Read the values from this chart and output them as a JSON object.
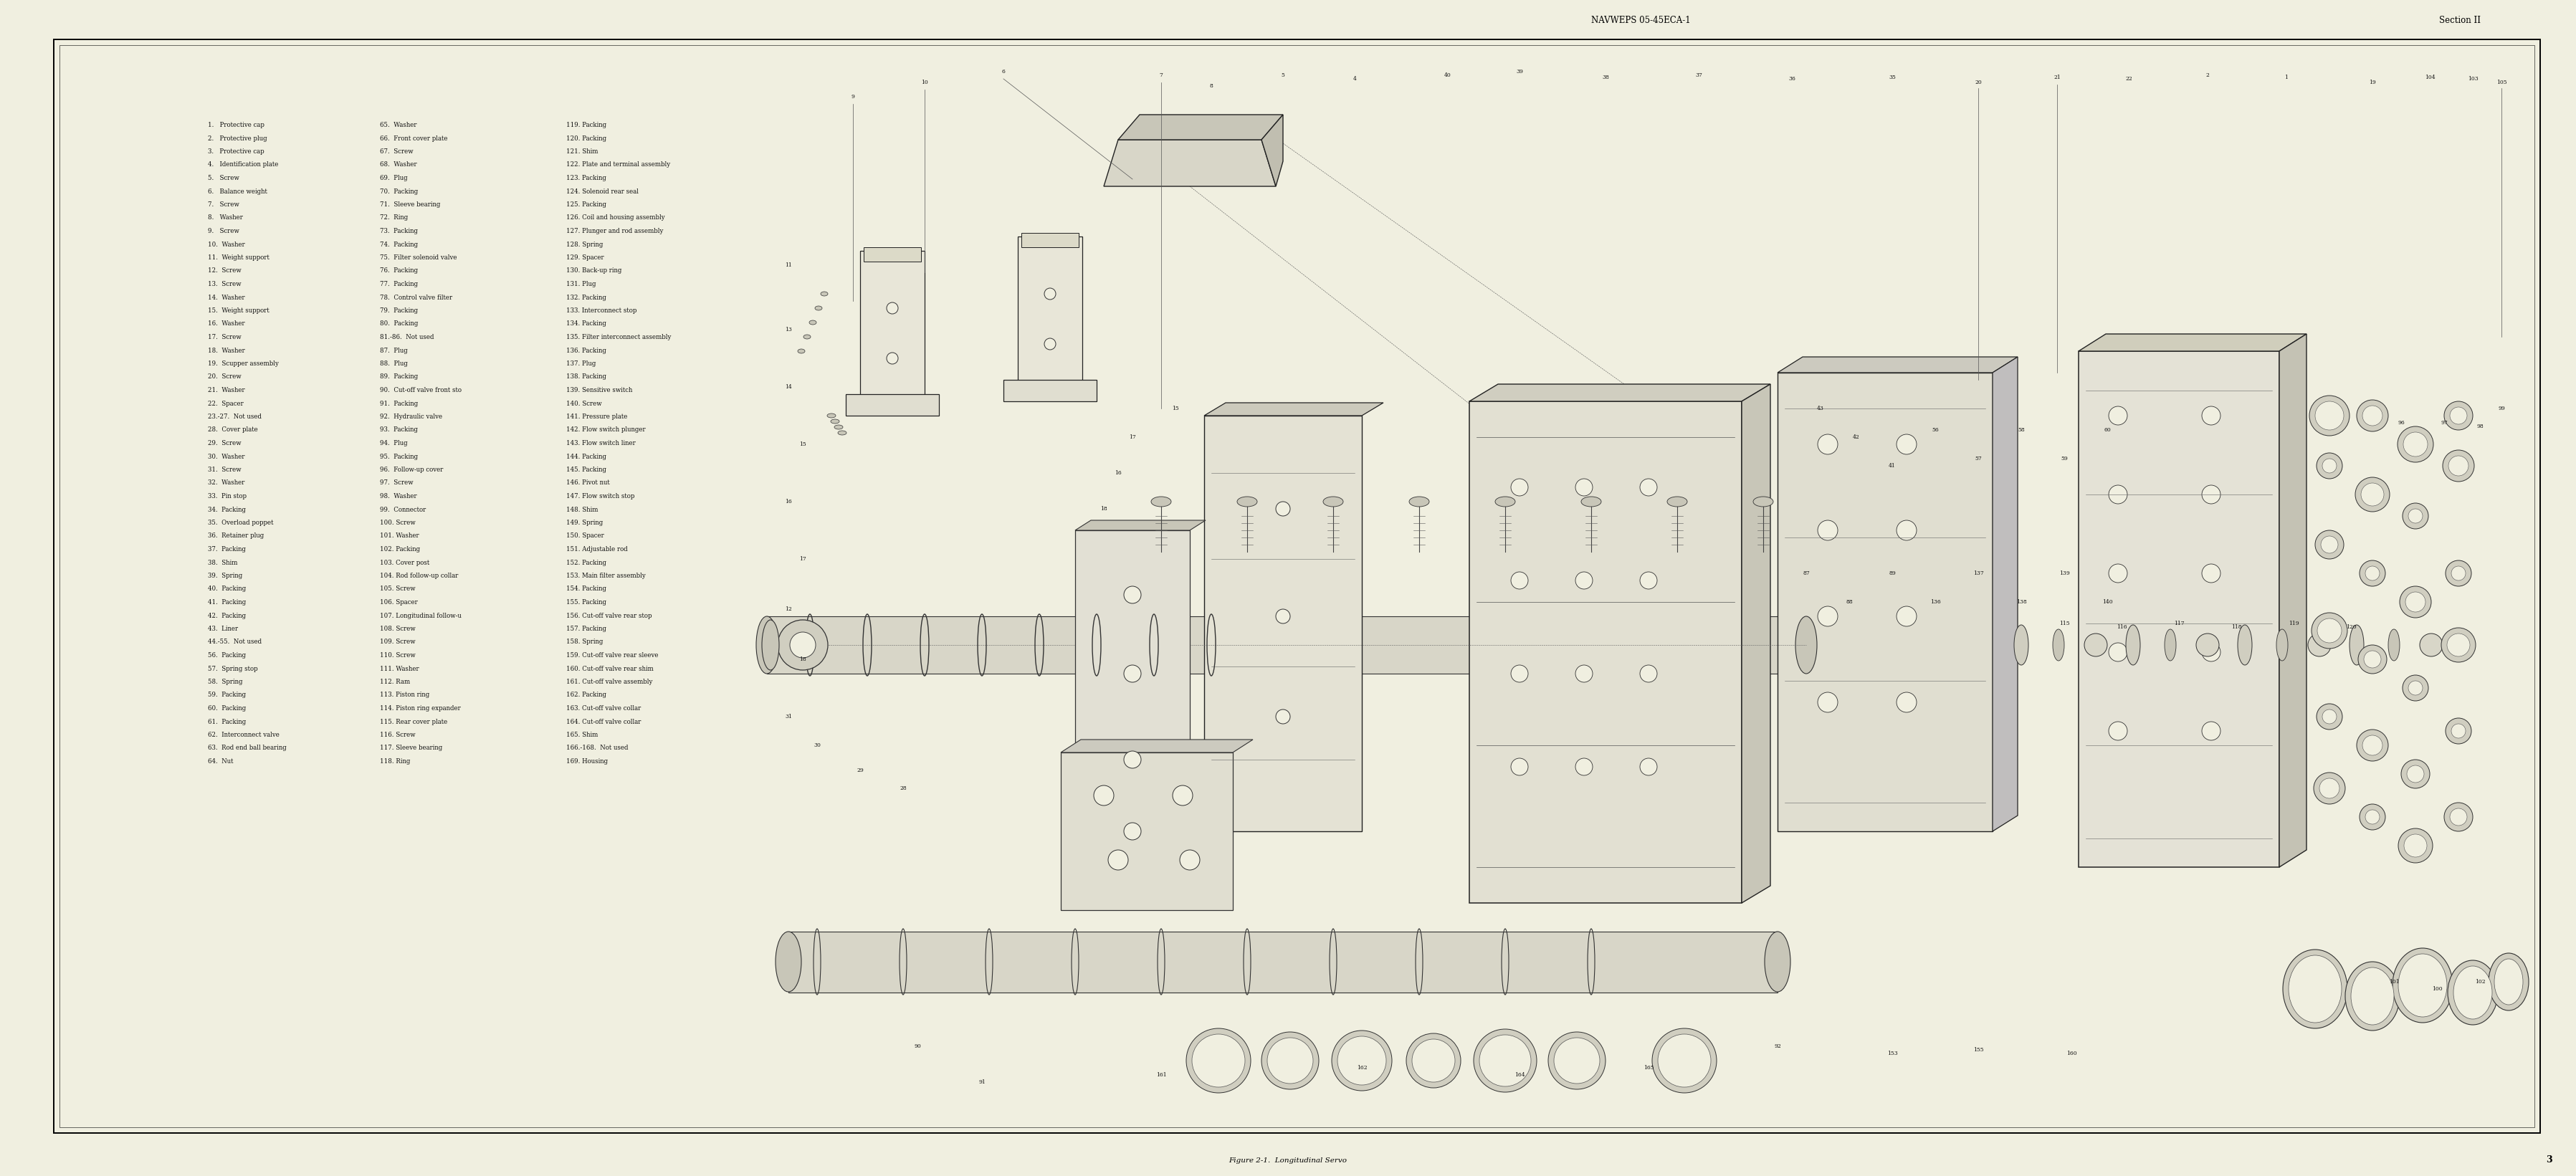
{
  "page_bg_color": "#F0EFE0",
  "border_color": "#000000",
  "header_text_center": "NAVWEPS 05-45ECA-1",
  "header_text_right": "Section II",
  "footer_figure_label": "Figure 2-1.  Longitudinal Servo",
  "footer_page_number": "3",
  "title_color": "#000000",
  "text_color": "#111111",
  "border_linewidth": 1.2,
  "parts_list_col1": [
    "1.   Protective cap",
    "2.   Protective plug",
    "3.   Protective cap",
    "4.   Identification plate",
    "5.   Screw",
    "6.   Balance weight",
    "7.   Screw",
    "8.   Washer",
    "9.   Screw",
    "10.  Washer",
    "11.  Weight support",
    "12.  Screw",
    "13.  Screw",
    "14.  Washer",
    "15.  Weight support",
    "16.  Washer",
    "17.  Screw",
    "18.  Washer",
    "19.  Scupper assembly",
    "20.  Screw",
    "21.  Washer",
    "22.  Spacer",
    "23.-27.  Not used",
    "28.  Cover plate",
    "29.  Screw",
    "30.  Washer",
    "31.  Screw",
    "32.  Washer",
    "33.  Pin stop",
    "34.  Packing",
    "35.  Overload poppet",
    "36.  Retainer plug",
    "37.  Packing",
    "38.  Shim",
    "39.  Spring",
    "40.  Packing",
    "41.  Packing",
    "42.  Packing",
    "43.  Liner",
    "44.-55.  Not used",
    "56.  Packing",
    "57.  Spring stop",
    "58.  Spring",
    "59.  Packing",
    "60.  Packing",
    "61.  Packing",
    "62.  Interconnect valve",
    "63.  Rod end ball bearing",
    "64.  Nut"
  ],
  "parts_list_col2": [
    "65.  Washer",
    "66.  Front cover plate",
    "67.  Screw",
    "68.  Washer",
    "69.  Plug",
    "70.  Packing",
    "71.  Sleeve bearing",
    "72.  Ring",
    "73.  Packing",
    "74.  Packing",
    "75.  Filter solenoid valve",
    "76.  Packing",
    "77.  Packing",
    "78.  Control valve filter",
    "79.  Packing",
    "80.  Packing",
    "81.-86.  Not used",
    "87.  Plug",
    "88.  Plug",
    "89.  Packing",
    "90.  Cut-off valve front sto",
    "91.  Packing",
    "92.  Hydraulic valve",
    "93.  Packing",
    "94.  Plug",
    "95.  Packing",
    "96.  Follow-up cover",
    "97.  Screw",
    "98.  Washer",
    "99.  Connector",
    "100. Screw",
    "101. Washer",
    "102. Packing",
    "103. Cover post",
    "104. Rod follow-up collar",
    "105. Screw",
    "106. Spacer",
    "107. Longitudinal follow-u",
    "108. Screw",
    "109. Screw",
    "110. Screw",
    "111. Washer",
    "112. Ram",
    "113. Piston ring",
    "114. Piston ring expander",
    "115. Rear cover plate",
    "116. Screw",
    "117. Sleeve bearing",
    "118. Ring"
  ],
  "parts_list_col3": [
    "119. Packing",
    "120. Packing",
    "121. Shim",
    "122. Plate and terminal assembly",
    "123. Packing",
    "124. Solenoid rear seal",
    "125. Packing",
    "126. Coil and housing assembly",
    "127. Plunger and rod assembly",
    "128. Spring",
    "129. Spacer",
    "130. Back-up ring",
    "131. Plug",
    "132. Packing",
    "133. Interconnect stop",
    "134. Packing",
    "135. Filter interconnect assembly",
    "136. Packing",
    "137. Plug",
    "138. Packing",
    "139. Sensitive switch",
    "140. Screw",
    "141. Pressure plate",
    "142. Flow switch plunger",
    "143. Flow switch liner",
    "144. Packing",
    "145. Packing",
    "146. Pivot nut",
    "147. Flow switch stop",
    "148. Shim",
    "149. Spring",
    "150. Spacer",
    "151. Adjustable rod",
    "152. Packing",
    "153. Main filter assembly",
    "154. Packing",
    "155. Packing",
    "156. Cut-off valve rear stop",
    "157. Packing",
    "158. Spring",
    "159. Cut-off valve rear sleeve",
    "160. Cut-off valve rear shim",
    "161. Cut-off valve assembly",
    "162. Packing",
    "163. Cut-off valve collar",
    "164. Cut-off valve collar",
    "165. Shim",
    "166.-168.  Not used",
    "169. Housing"
  ],
  "font_size_header": 8.5,
  "font_size_parts": 6.2,
  "font_size_footer": 7.5,
  "font_size_page_num": 9
}
